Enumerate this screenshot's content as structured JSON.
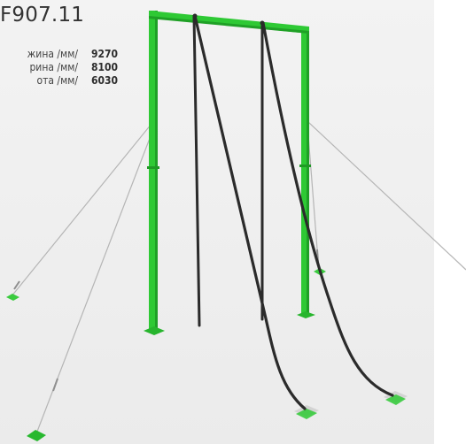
{
  "product": {
    "code": "F907.11"
  },
  "specs": [
    {
      "label": "жина /мм/",
      "value": "9270"
    },
    {
      "label": "рина /мм/",
      "value": "8100"
    },
    {
      "label": "ота /мм/",
      "value": "6030"
    }
  ],
  "colors": {
    "frame_green": "#2ec934",
    "frame_green_dark": "#1f9a25",
    "rope_dark": "#2b2b2b",
    "guy_wire": "#b8b8b8",
    "anchor_plate": "#c9c9c9"
  }
}
